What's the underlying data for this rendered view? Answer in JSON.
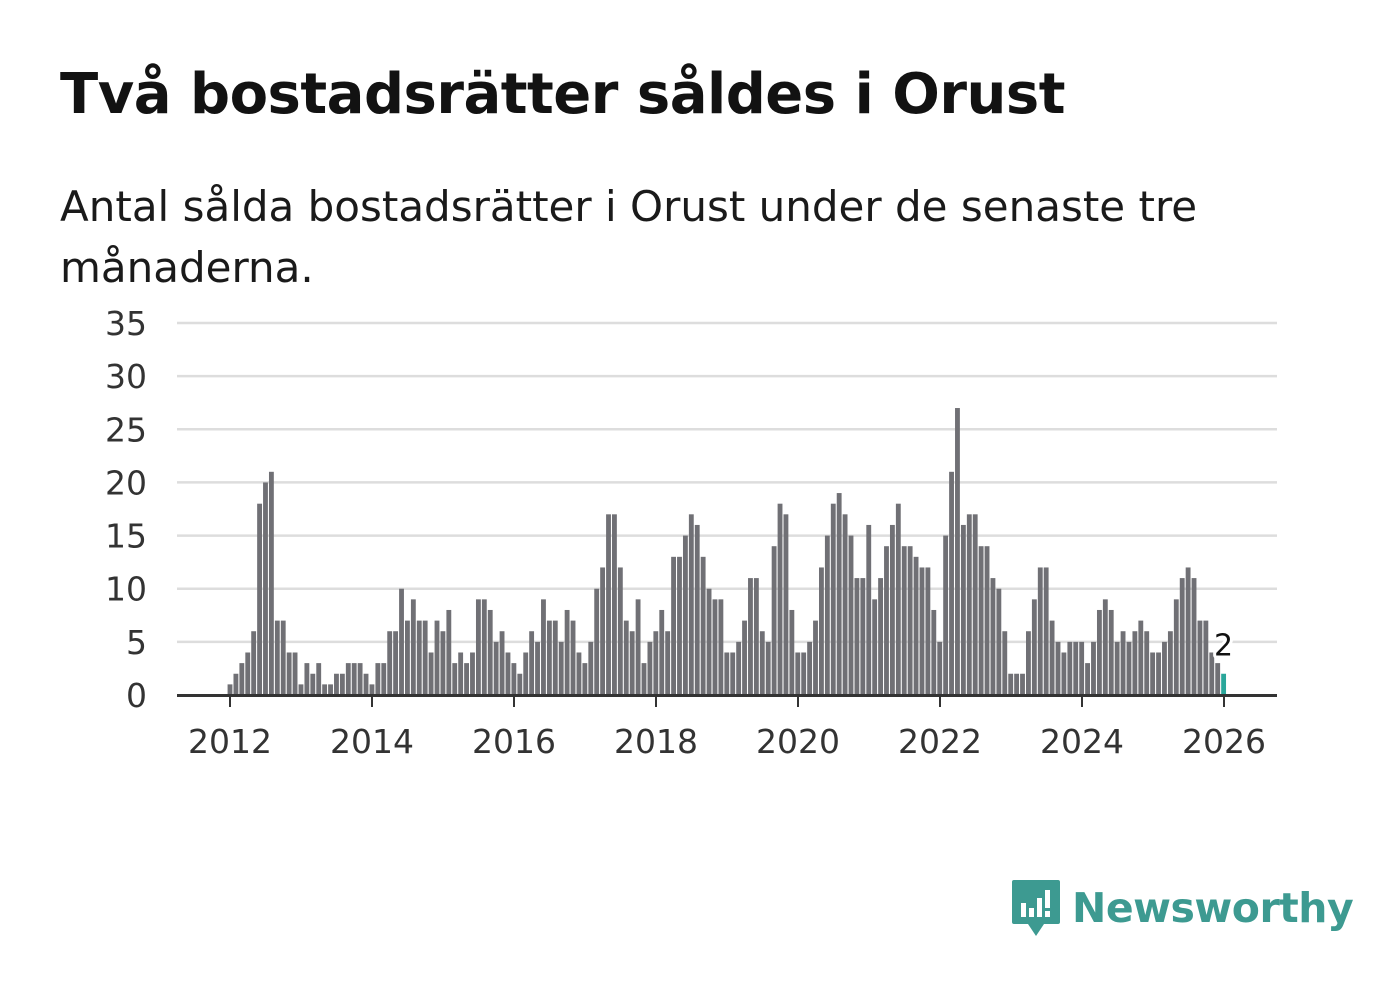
{
  "title": "Två bostadsrätter såldes i Orust",
  "subtitle": "Antal sålda bostadsrätter i Orust under de senaste tre månaderna.",
  "brand": {
    "name": "Newsworthy",
    "icon": "newsworthy-logo-icon",
    "color": "#3d9a91"
  },
  "colors": {
    "bar": "#707075",
    "highlight": "#2aa69a",
    "grid": "#dddddd",
    "axis": "#333333"
  },
  "chart_data": {
    "type": "bar",
    "title": "Två bostadsrätter såldes i Orust",
    "xlabel": "",
    "ylabel": "",
    "ylim": [
      0,
      35
    ],
    "yticks": [
      0,
      5,
      10,
      15,
      20,
      25,
      30,
      35
    ],
    "xticks": [
      2012,
      2014,
      2016,
      2018,
      2020,
      2022,
      2024,
      2026
    ],
    "x_tick_labels": [
      "2012",
      "2014",
      "2016",
      "2018",
      "2020",
      "2022",
      "2024",
      "2026"
    ],
    "x_start": 2012.0,
    "x_step": 0.0833,
    "highlight_label": "2",
    "grid": true,
    "values": [
      1,
      2,
      3,
      4,
      6,
      18,
      20,
      21,
      7,
      7,
      4,
      4,
      1,
      3,
      2,
      3,
      1,
      1,
      2,
      2,
      3,
      3,
      3,
      2,
      1,
      3,
      3,
      6,
      6,
      10,
      7,
      9,
      7,
      7,
      4,
      7,
      6,
      8,
      3,
      4,
      3,
      4,
      9,
      9,
      8,
      5,
      6,
      4,
      3,
      2,
      4,
      6,
      5,
      9,
      7,
      7,
      5,
      8,
      7,
      4,
      3,
      5,
      10,
      12,
      17,
      17,
      12,
      7,
      6,
      9,
      3,
      5,
      6,
      8,
      6,
      13,
      13,
      15,
      17,
      16,
      13,
      10,
      9,
      9,
      4,
      4,
      5,
      7,
      11,
      11,
      6,
      5,
      14,
      18,
      17,
      8,
      4,
      4,
      5,
      7,
      12,
      15,
      18,
      19,
      17,
      15,
      11,
      11,
      16,
      9,
      11,
      14,
      16,
      18,
      14,
      14,
      13,
      12,
      12,
      8,
      5,
      15,
      21,
      27,
      16,
      17,
      17,
      14,
      14,
      11,
      10,
      6,
      2,
      2,
      2,
      6,
      9,
      12,
      12,
      7,
      5,
      4,
      5,
      5,
      5,
      3,
      5,
      8,
      9,
      8,
      5,
      6,
      5,
      6,
      7,
      6,
      4,
      4,
      5,
      6,
      9,
      11,
      12,
      11,
      7,
      7,
      4,
      3,
      2
    ]
  }
}
